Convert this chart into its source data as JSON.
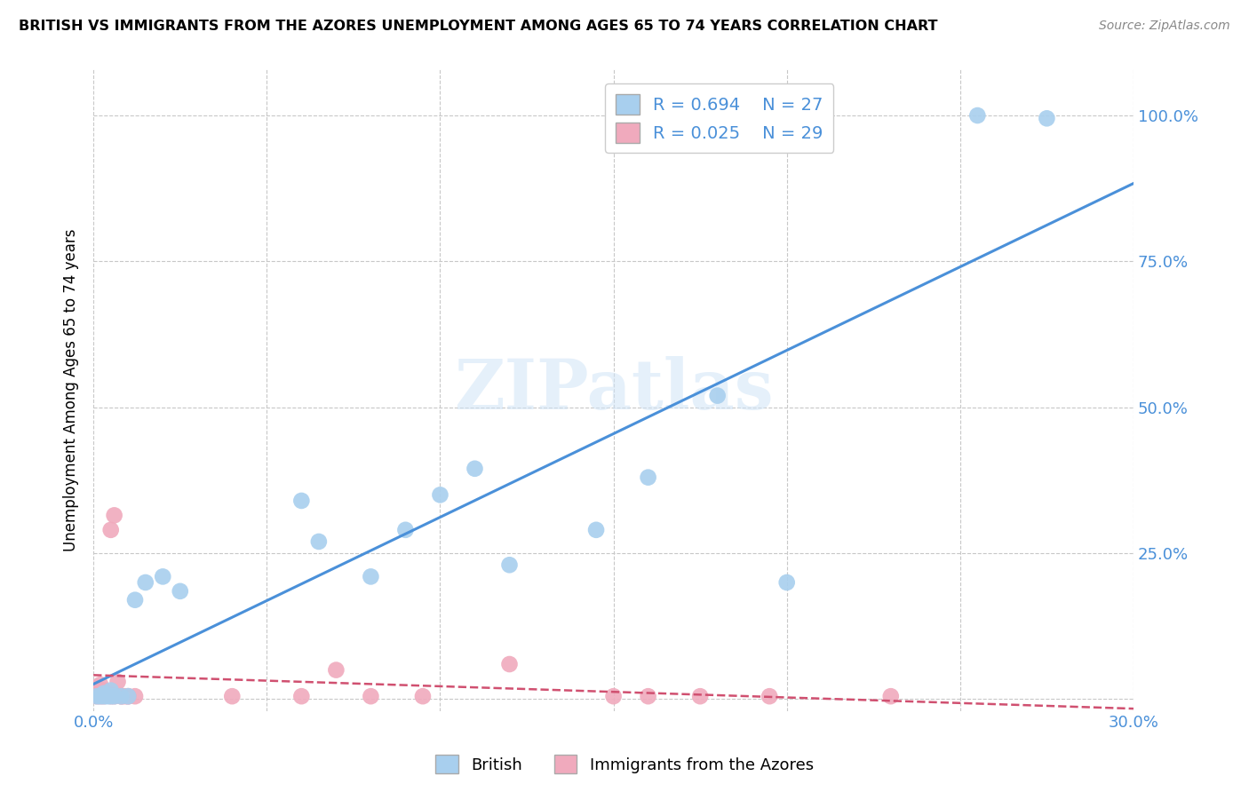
{
  "title": "BRITISH VS IMMIGRANTS FROM THE AZORES UNEMPLOYMENT AMONG AGES 65 TO 74 YEARS CORRELATION CHART",
  "source": "Source: ZipAtlas.com",
  "ylabel": "Unemployment Among Ages 65 to 74 years",
  "xlim": [
    0.0,
    0.3
  ],
  "ylim": [
    -0.02,
    1.08
  ],
  "x_ticks": [
    0.0,
    0.05,
    0.1,
    0.15,
    0.2,
    0.25,
    0.3
  ],
  "y_ticks": [
    0.0,
    0.25,
    0.5,
    0.75,
    1.0
  ],
  "british_color": "#A8CFEE",
  "azores_color": "#F0AABD",
  "british_line_color": "#4A90D9",
  "azores_line_color": "#D05070",
  "legend_R_british": "R = 0.694",
  "legend_N_british": "N = 27",
  "legend_R_azores": "R = 0.025",
  "legend_N_azores": "N = 29",
  "watermark": "ZIPatlas",
  "british_x": [
    0.001,
    0.002,
    0.003,
    0.003,
    0.004,
    0.005,
    0.005,
    0.006,
    0.008,
    0.01,
    0.012,
    0.015,
    0.02,
    0.025,
    0.06,
    0.065,
    0.08,
    0.09,
    0.1,
    0.11,
    0.12,
    0.145,
    0.16,
    0.18,
    0.2,
    0.255,
    0.275
  ],
  "british_y": [
    0.005,
    0.005,
    0.005,
    0.01,
    0.005,
    0.005,
    0.015,
    0.005,
    0.005,
    0.005,
    0.17,
    0.2,
    0.21,
    0.185,
    0.34,
    0.27,
    0.21,
    0.29,
    0.35,
    0.395,
    0.23,
    0.29,
    0.38,
    0.52,
    0.2,
    1.0,
    0.995
  ],
  "azores_x": [
    0.001,
    0.001,
    0.002,
    0.002,
    0.003,
    0.003,
    0.004,
    0.005,
    0.005,
    0.006,
    0.006,
    0.007,
    0.008,
    0.008,
    0.009,
    0.01,
    0.01,
    0.012,
    0.04,
    0.06,
    0.07,
    0.08,
    0.095,
    0.12,
    0.15,
    0.16,
    0.175,
    0.195,
    0.23
  ],
  "azores_y": [
    0.005,
    0.02,
    0.005,
    0.025,
    0.005,
    0.015,
    0.01,
    0.005,
    0.29,
    0.005,
    0.315,
    0.03,
    0.005,
    0.005,
    0.005,
    0.005,
    0.005,
    0.005,
    0.005,
    0.005,
    0.05,
    0.005,
    0.005,
    0.06,
    0.005,
    0.005,
    0.005,
    0.005,
    0.005
  ]
}
